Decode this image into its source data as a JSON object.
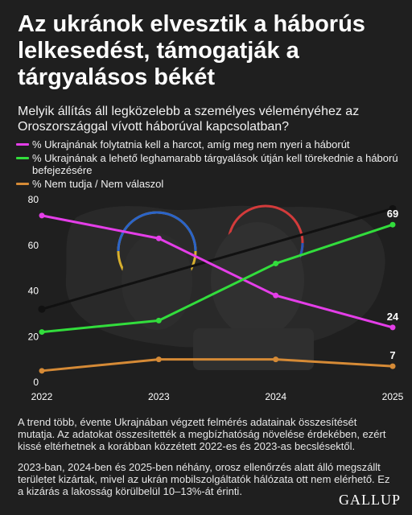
{
  "title": "Az ukránok elvesztik a háborús lelkesedést, támogatják a tárgyalásos békét",
  "subtitle": "Melyik állítás áll legközelebb a személyes véleményéhez az Oroszországgal vívott háborúval kapcsolatban?",
  "colors": {
    "background": "#1f1f1f",
    "continue_fighting": "#e43ee8",
    "negotiations": "#32dd3c",
    "dont_know": "#d58a36",
    "overlay_line": "#111111",
    "axis_text": "#ffffff"
  },
  "chart_data": {
    "type": "line",
    "title": "",
    "xlabel": "",
    "ylabel": "",
    "x": [
      2022,
      2023,
      2024,
      2025
    ],
    "ylim": [
      0,
      80
    ],
    "yticks": [
      0,
      20,
      40,
      60,
      80
    ],
    "grid": false,
    "legend_position": "top-left",
    "series": [
      {
        "name": "% Ukrajnának folytatnia kell a harcot, amíg meg nem nyeri a háborút",
        "color": "#e43ee8",
        "values": [
          73,
          63,
          38,
          24
        ],
        "end_label": "24"
      },
      {
        "name": "% Ukrajnának a lehető leghamarabb tárgyalások útján kell törekednie a háború befejezésére",
        "color": "#32dd3c",
        "values": [
          22,
          27,
          52,
          69
        ],
        "end_label": "69"
      },
      {
        "name": "% Nem tudja / Nem válaszol",
        "color": "#d58a36",
        "values": [
          5,
          10,
          10,
          7
        ],
        "end_label": "7"
      }
    ],
    "trend_overlay": {
      "x": [
        2022,
        2025
      ],
      "values": [
        32,
        76
      ]
    }
  },
  "footnotes": [
    "A trend több, évente Ukrajnában végzett felmérés adatainak összesítését mutatja. Az adatokat összesítették a megbízhatóság növelése érdekében, ezért kissé eltérhetnek a korábban közzétett 2022-es és 2023-as becslésektől.",
    "2023-ban, 2024-ben és 2025-ben néhány, orosz ellenőrzés alatt álló megszállt területet kizártak, mivel az ukrán mobilszolgáltatók hálózata ott nem elérhető. Ez a kizárás a lakosság körülbelül 10–13%-át érinti."
  ],
  "brand": "GALLUP"
}
